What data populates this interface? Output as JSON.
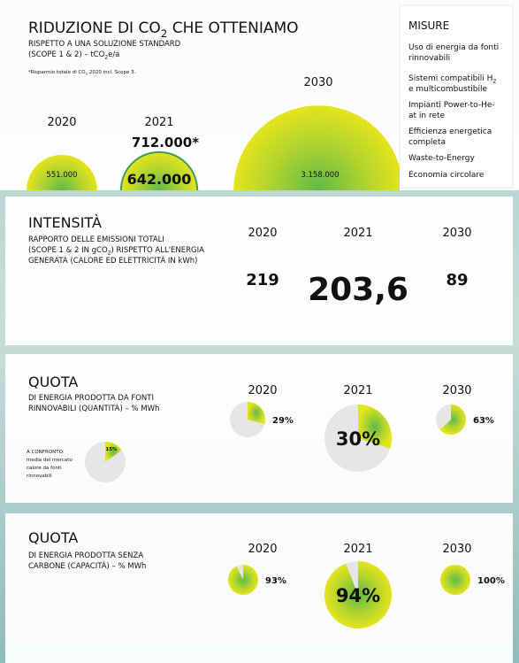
{
  "sections": [
    {
      "title": [
        {
          "text": "RIDUZIONE DI CO"
        },
        {
          "text": "2",
          "sub": true
        },
        {
          "text": " CHE OTTENIAMO"
        }
      ],
      "subtitle": [
        [
          {
            "text": "RISPETTO A UNA SOLUZIONE STANDARD"
          }
        ],
        [
          {
            "text": "(SCOPE 1 & 2) – tCO"
          },
          {
            "text": "2",
            "sub": true
          },
          {
            "text": "e/a"
          }
        ]
      ],
      "footnote": [
        {
          "text": "*Risparmio totale di CO"
        },
        {
          "text": "2",
          "sub": true
        },
        {
          "text": " 2020 incl. Scope 3."
        }
      ],
      "items": [
        {
          "year": "2020",
          "value": 551000,
          "label": "551.000"
        },
        {
          "year": "2021",
          "value": 642000,
          "label": "642.000",
          "extra_value": 712000,
          "extra_label": "712.000*"
        },
        {
          "year": "2030",
          "value": 3158000,
          "label": "3.158.000"
        }
      ]
    },
    {
      "title": [
        {
          "text": "INTENSITÀ"
        }
      ],
      "subtitle": [
        [
          {
            "text": "RAPPORTO DELLE EMISSIONI TOTALI"
          }
        ],
        [
          {
            "text": "(SCOPE 1 & 2 IN gCO"
          },
          {
            "text": "2",
            "sub": true
          },
          {
            "text": ") RISPETTO ALL'ENERGIA"
          }
        ],
        [
          {
            "text": "GENERATA (CALORE ED ELETTRICITÀ IN kWh)"
          }
        ]
      ],
      "items": [
        {
          "year": "2020",
          "value": 219,
          "label": "219"
        },
        {
          "year": "2021",
          "value": 203.6,
          "label": "203,6"
        },
        {
          "year": "2030",
          "value": 89,
          "label": "89"
        }
      ]
    },
    {
      "title": [
        {
          "text": "QUOTA"
        }
      ],
      "subtitle": [
        [
          {
            "text": "DI ENERGIA PRODOTTA DA FONTI"
          }
        ],
        [
          {
            "text": "RINNOVABILI (QUANTITÀ) – % MWh"
          }
        ]
      ],
      "items": [
        {
          "year": "2020",
          "value": 29,
          "label": "29%"
        },
        {
          "year": "2021",
          "value": 30,
          "label": "30%"
        },
        {
          "year": "2030",
          "value": 63,
          "label": "63%"
        }
      ],
      "comparison": {
        "lines": [
          "A CONFRONTO:",
          "media del mercato",
          "calore da fonti",
          "rinnovabili"
        ],
        "value": 15,
        "label": "15%"
      }
    },
    {
      "title": [
        {
          "text": "QUOTA"
        }
      ],
      "subtitle": [
        [
          {
            "text": "DI ENERGIA PRODOTTA SENZA"
          }
        ],
        [
          {
            "text": "CARBONE (CAPACITÀ) – % MWh"
          }
        ]
      ],
      "items": [
        {
          "year": "2020",
          "value": 93,
          "label": "93%"
        },
        {
          "year": "2021",
          "value": 94,
          "label": "94%"
        },
        {
          "year": "2030",
          "value": 100,
          "label": "100%"
        }
      ]
    }
  ],
  "measures": {
    "title": "MISURE",
    "items": [
      [
        [
          {
            "text": "Uso di energia da fonti"
          }
        ],
        [
          {
            "text": "rinnovabili"
          }
        ]
      ],
      [
        [
          {
            "text": "Sistemi compatibili H"
          },
          {
            "text": "2",
            "sub": true
          }
        ],
        [
          {
            "text": "e multicombustibile"
          }
        ]
      ],
      [
        [
          {
            "text": "Impianti Power-to-He-"
          }
        ],
        [
          {
            "text": "at in rete"
          }
        ]
      ],
      [
        [
          {
            "text": "Efficienza energetica"
          }
        ],
        [
          {
            "text": "completa"
          }
        ]
      ],
      [
        [
          {
            "text": "Waste-to-Energy"
          }
        ]
      ],
      [
        [
          {
            "text": "Economia circolare"
          }
        ]
      ]
    ]
  }
}
